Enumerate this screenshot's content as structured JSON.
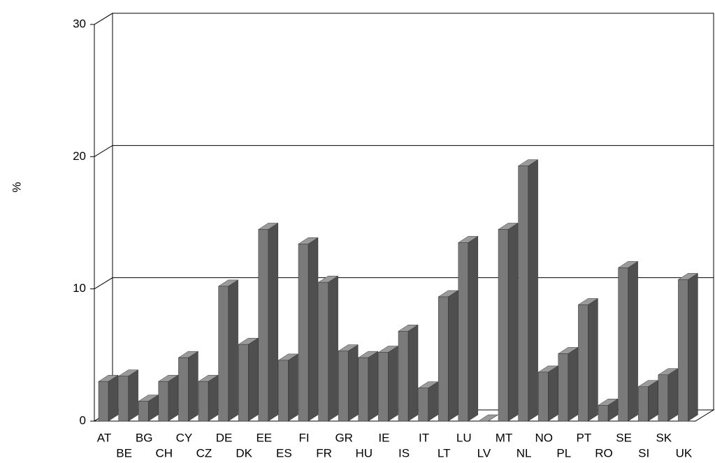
{
  "chart_data": {
    "type": "bar",
    "y_label": "%",
    "categories": [
      "AT",
      "BE",
      "BG",
      "CH",
      "CY",
      "CZ",
      "DE",
      "DK",
      "EE",
      "ES",
      "FI",
      "FR",
      "GR",
      "HU",
      "IE",
      "IS",
      "IT",
      "LT",
      "LU",
      "LV",
      "MT",
      "NL",
      "NO",
      "PL",
      "PT",
      "RO",
      "SE",
      "SI",
      "SK",
      "UK"
    ],
    "values": [
      3.0,
      3.4,
      1.5,
      3.0,
      4.8,
      3.0,
      10.2,
      5.8,
      14.5,
      4.6,
      13.4,
      10.5,
      5.3,
      4.8,
      5.2,
      6.8,
      2.5,
      9.4,
      13.5,
      0,
      14.5,
      19.3,
      3.7,
      5.1,
      8.8,
      1.2,
      11.6,
      2.6,
      3.5,
      10.7
    ],
    "color": "#7a7a7a",
    "ylim": [
      0,
      30
    ],
    "yticks": [
      0,
      10,
      20,
      30
    ],
    "grid": true
  }
}
